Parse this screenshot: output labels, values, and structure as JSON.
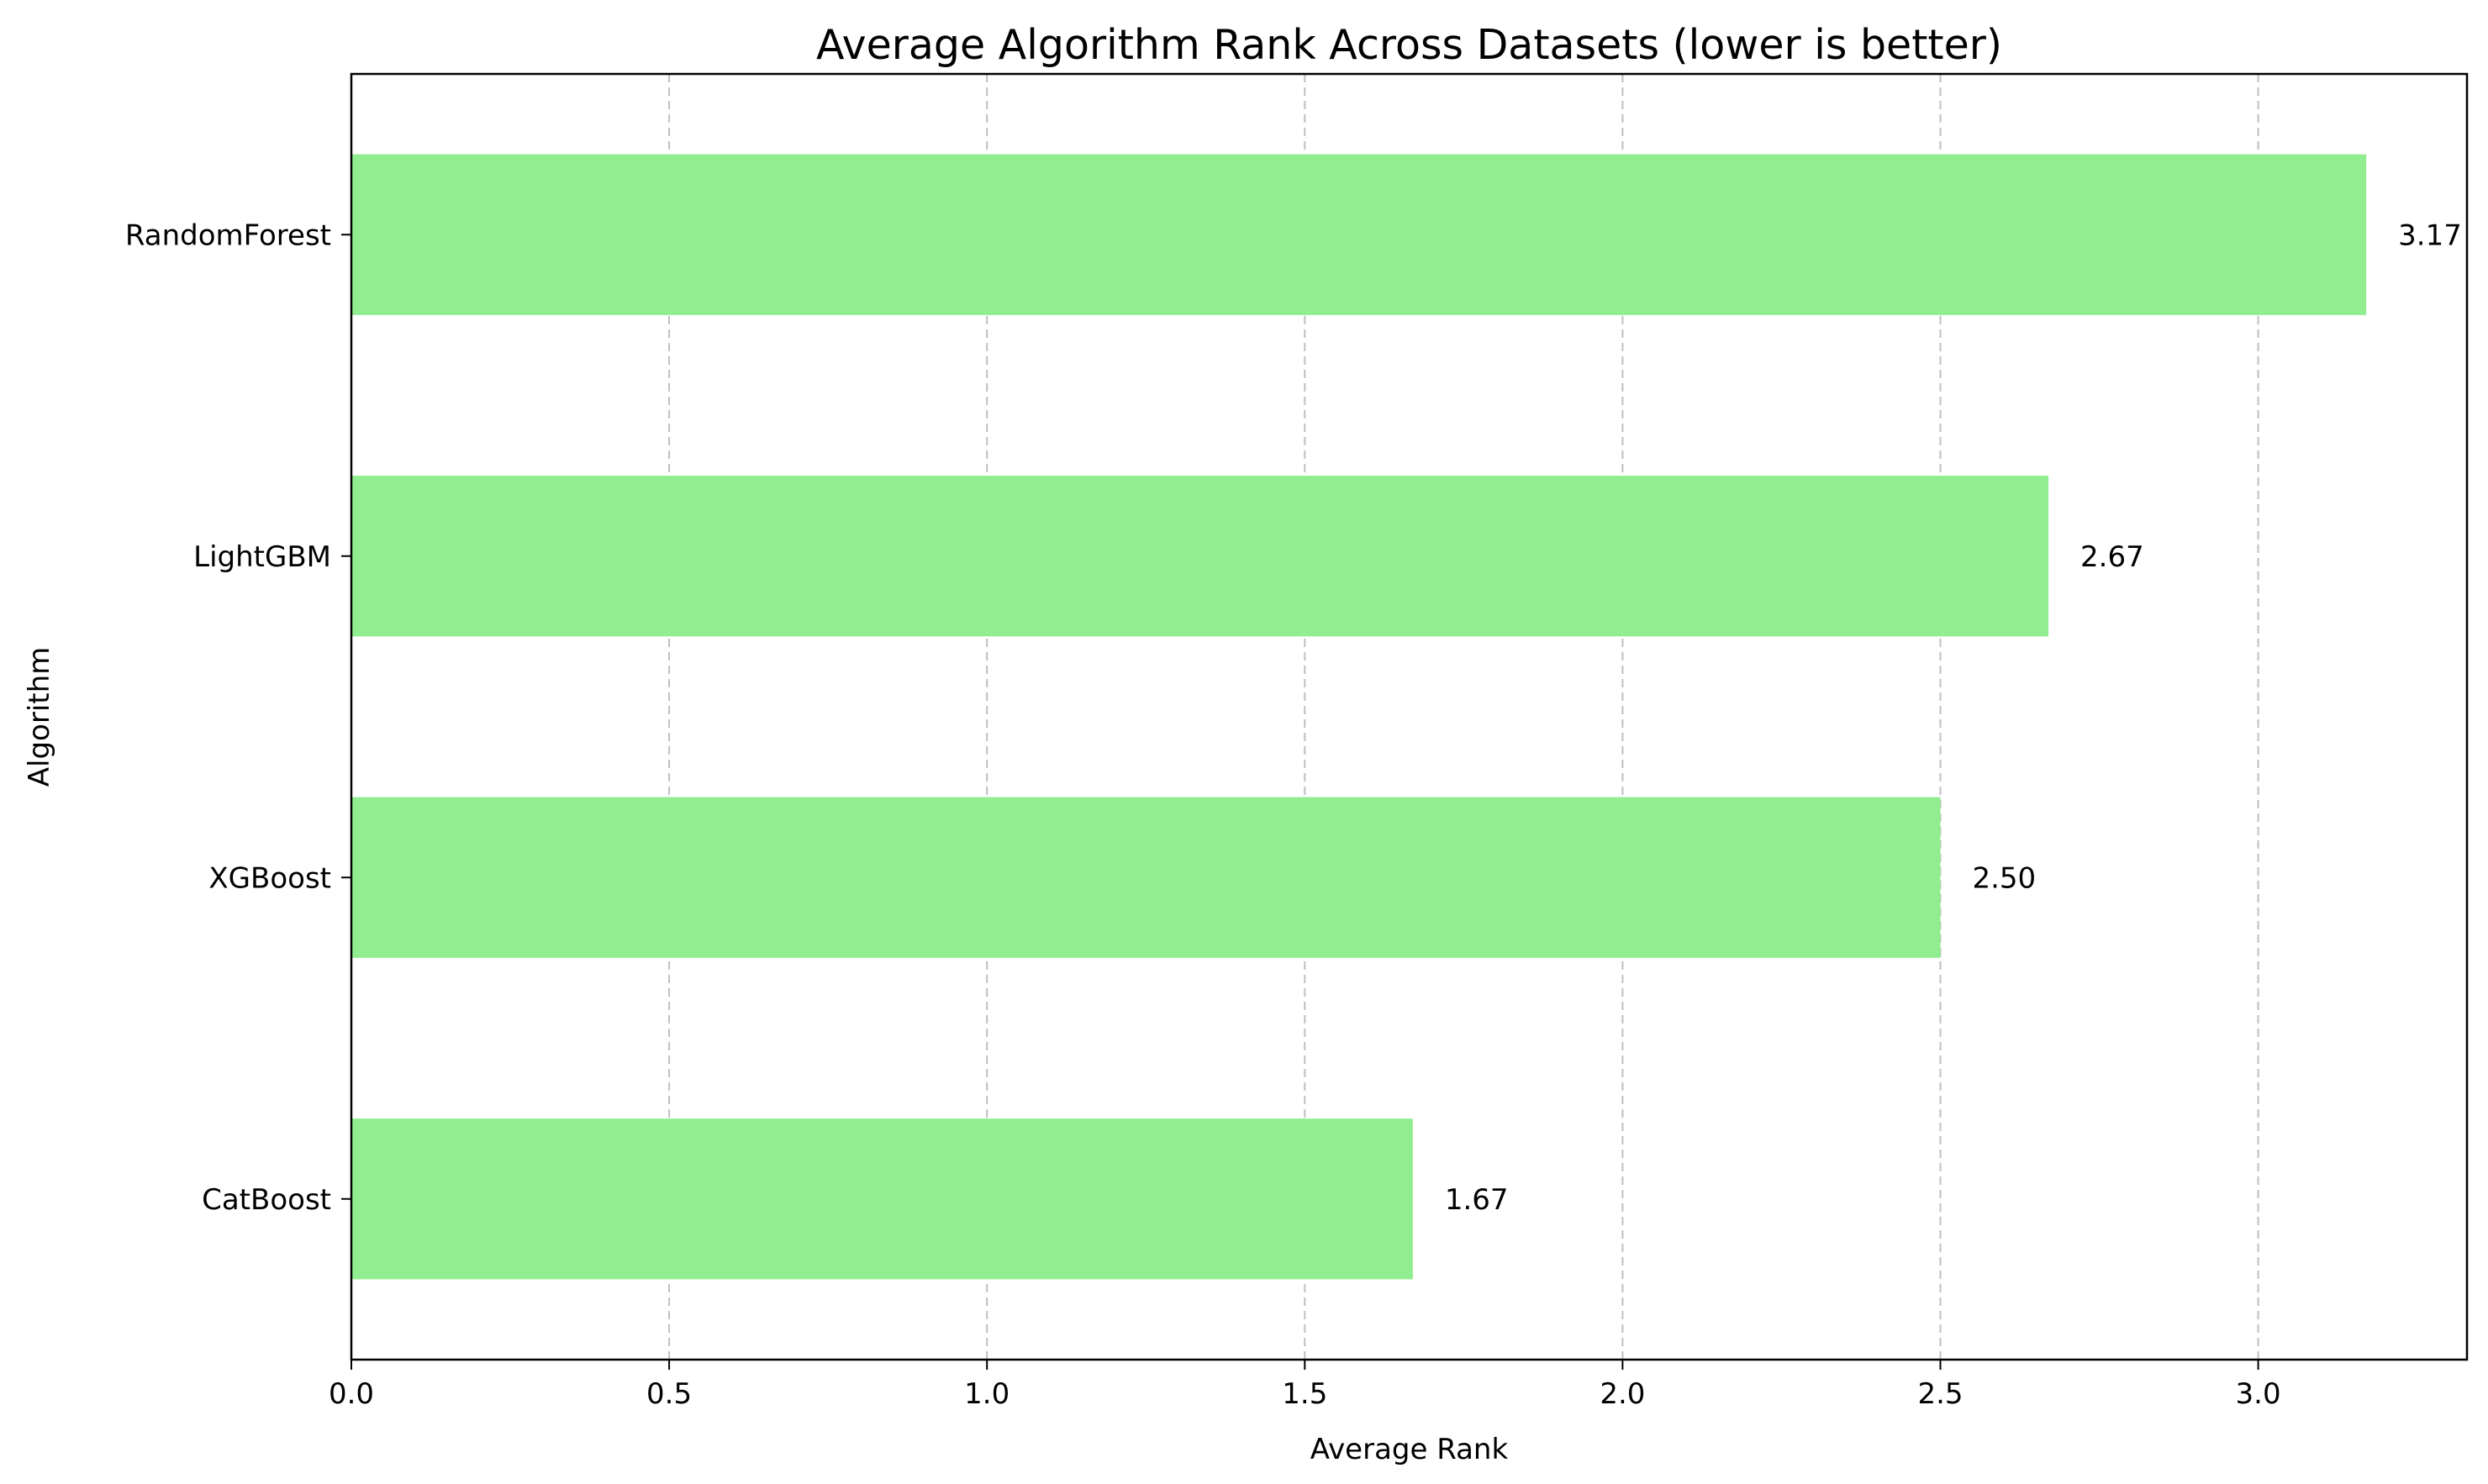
{
  "chart_data": {
    "type": "bar",
    "orientation": "horizontal",
    "title": "Average Algorithm Rank Across Datasets (lower is better)",
    "xlabel": "Average Rank",
    "ylabel": "Algorithm",
    "categories": [
      "CatBoost",
      "XGBoost",
      "LightGBM",
      "RandomForest"
    ],
    "values": [
      1.67,
      2.5,
      2.67,
      3.17
    ],
    "data_labels": [
      "1.67",
      "2.50",
      "2.67",
      "3.17"
    ],
    "xlim": [
      0,
      3.3285
    ],
    "xticks": [
      0.0,
      0.5,
      1.0,
      1.5,
      2.0,
      2.5,
      3.0
    ],
    "xtick_labels": [
      "0.0",
      "0.5",
      "1.0",
      "1.5",
      "2.0",
      "2.5",
      "3.0"
    ],
    "grid": "x-axis dashed",
    "bar_color": "#90ee90"
  }
}
